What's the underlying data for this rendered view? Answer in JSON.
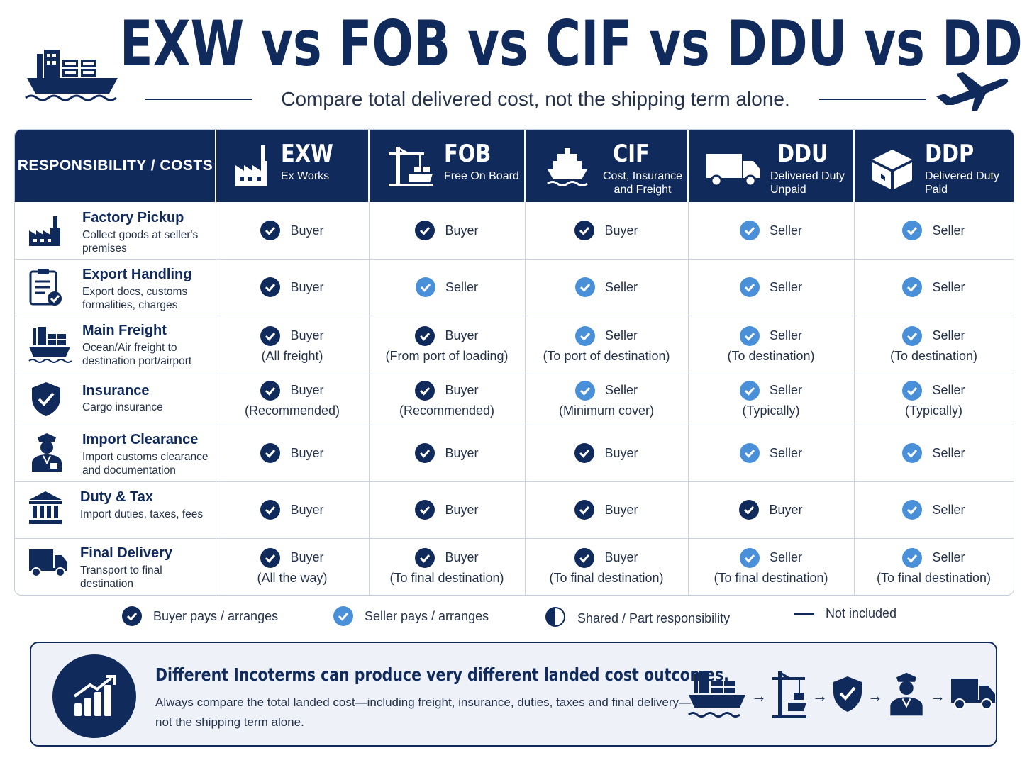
{
  "header": {
    "title": "EXW vs FOB vs CIF vs DDU vs DDP",
    "subtitle": "Compare total delivered cost, not the shipping term alone."
  },
  "table": {
    "corner_label": "RESPONSIBILITY / COSTS",
    "columns": [
      {
        "code": "EXW",
        "name": "Ex Works",
        "icon": "factory-icon"
      },
      {
        "code": "FOB",
        "name": "Free On Board",
        "icon": "port-crane-icon"
      },
      {
        "code": "CIF",
        "name": "Cost, Insurance and Freight",
        "icon": "ship-icon"
      },
      {
        "code": "DDU",
        "name": "Delivered Duty Unpaid",
        "icon": "truck-icon"
      },
      {
        "code": "DDP",
        "name": "Delivered Duty Paid",
        "icon": "package-icon"
      }
    ],
    "rows": [
      {
        "title": "Factory Pickup",
        "desc": "Collect goods at seller's premises",
        "icon": "factory-icon",
        "cells": [
          {
            "party": "buyer",
            "label": "Buyer",
            "note": ""
          },
          {
            "party": "buyer",
            "label": "Buyer",
            "note": ""
          },
          {
            "party": "buyer",
            "label": "Buyer",
            "note": ""
          },
          {
            "party": "seller",
            "label": "Seller",
            "note": ""
          },
          {
            "party": "seller",
            "label": "Seller",
            "note": ""
          }
        ]
      },
      {
        "title": "Export Handling",
        "desc": "Export docs, customs formalities, charges",
        "icon": "clipboard-check-icon",
        "cells": [
          {
            "party": "buyer",
            "label": "Buyer",
            "note": ""
          },
          {
            "party": "seller",
            "label": "Seller",
            "note": ""
          },
          {
            "party": "seller",
            "label": "Seller",
            "note": ""
          },
          {
            "party": "seller",
            "label": "Seller",
            "note": ""
          },
          {
            "party": "seller",
            "label": "Seller",
            "note": ""
          }
        ]
      },
      {
        "title": "Main Freight",
        "desc": "Ocean/Air freight to destination port/airport",
        "icon": "cargo-ship-icon",
        "cells": [
          {
            "party": "buyer",
            "label": "Buyer",
            "note": "(All freight)"
          },
          {
            "party": "buyer",
            "label": "Buyer",
            "note": "(From port of loading)"
          },
          {
            "party": "seller",
            "label": "Seller",
            "note": "(To port of destination)"
          },
          {
            "party": "seller",
            "label": "Seller",
            "note": "(To destination)"
          },
          {
            "party": "seller",
            "label": "Seller",
            "note": "(To destination)"
          }
        ]
      },
      {
        "title": "Insurance",
        "desc": "Cargo insurance",
        "icon": "shield-check-icon",
        "cells": [
          {
            "party": "buyer",
            "label": "Buyer",
            "note": "(Recommended)"
          },
          {
            "party": "buyer",
            "label": "Buyer",
            "note": "(Recommended)"
          },
          {
            "party": "seller",
            "label": "Seller",
            "note": "(Minimum cover)"
          },
          {
            "party": "seller",
            "label": "Seller",
            "note": "(Typically)"
          },
          {
            "party": "seller",
            "label": "Seller",
            "note": "(Typically)"
          }
        ]
      },
      {
        "title": "Import Clearance",
        "desc": "Import customs clearance and documentation",
        "icon": "customs-officer-icon",
        "cells": [
          {
            "party": "buyer",
            "label": "Buyer",
            "note": ""
          },
          {
            "party": "buyer",
            "label": "Buyer",
            "note": ""
          },
          {
            "party": "buyer",
            "label": "Buyer",
            "note": ""
          },
          {
            "party": "seller",
            "label": "Seller",
            "note": ""
          },
          {
            "party": "seller",
            "label": "Seller",
            "note": ""
          }
        ]
      },
      {
        "title": "Duty & Tax",
        "desc": "Import duties, taxes, fees",
        "icon": "government-building-icon",
        "cells": [
          {
            "party": "buyer",
            "label": "Buyer",
            "note": ""
          },
          {
            "party": "buyer",
            "label": "Buyer",
            "note": ""
          },
          {
            "party": "buyer",
            "label": "Buyer",
            "note": ""
          },
          {
            "party": "buyer",
            "label": "Buyer",
            "note": ""
          },
          {
            "party": "seller",
            "label": "Seller",
            "note": ""
          }
        ]
      },
      {
        "title": "Final Delivery",
        "desc": "Transport to final destination",
        "icon": "delivery-truck-icon",
        "cells": [
          {
            "party": "buyer",
            "label": "Buyer",
            "note": "(All the way)"
          },
          {
            "party": "buyer",
            "label": "Buyer",
            "note": "(To final destination)"
          },
          {
            "party": "buyer",
            "label": "Buyer",
            "note": "(To final destination)"
          },
          {
            "party": "seller",
            "label": "Seller",
            "note": "(To final destination)"
          },
          {
            "party": "seller",
            "label": "Seller",
            "note": "(To final destination)"
          }
        ]
      }
    ]
  },
  "legend": {
    "buyer": "Buyer pays / arranges",
    "seller": "Seller pays / arranges",
    "shared": "Shared / Part responsibility",
    "none": "Not included"
  },
  "banner": {
    "headline": "Different Incoterms can produce very different landed cost outcomes.",
    "body": "Always compare the total landed cost—including freight, insurance, duties, taxes and final delivery—not the shipping term alone.",
    "icon": "growth-chart-icon",
    "flow_icons": [
      "cargo-ship-icon",
      "port-crane-icon",
      "shield-check-icon",
      "customs-officer-icon",
      "delivery-truck-icon"
    ]
  },
  "colors": {
    "navy": "#102a5c",
    "buyer_check": "#102a5c",
    "seller_check": "#4a90d9",
    "grid_line": "#cdd3dd"
  }
}
